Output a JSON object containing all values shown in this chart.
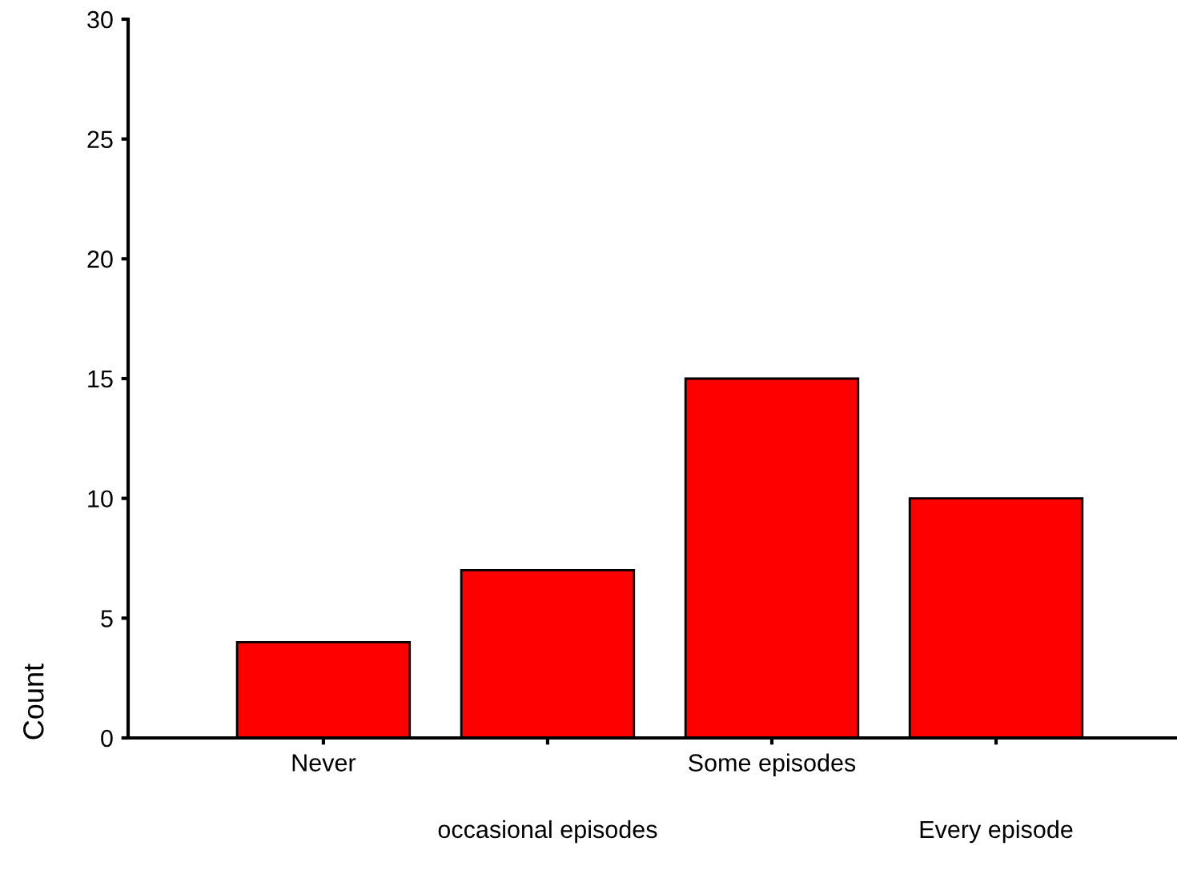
{
  "chart_data": {
    "type": "bar",
    "categories": [
      "Never",
      "occasional episodes",
      "Some episodes",
      "Every episode"
    ],
    "values": [
      4,
      7,
      15,
      10
    ],
    "color": "#ff0000",
    "ylabel": "Count",
    "ylim": [
      0,
      30
    ],
    "yticks": [
      0,
      5,
      10,
      15,
      20,
      25,
      30
    ],
    "grid": false
  }
}
